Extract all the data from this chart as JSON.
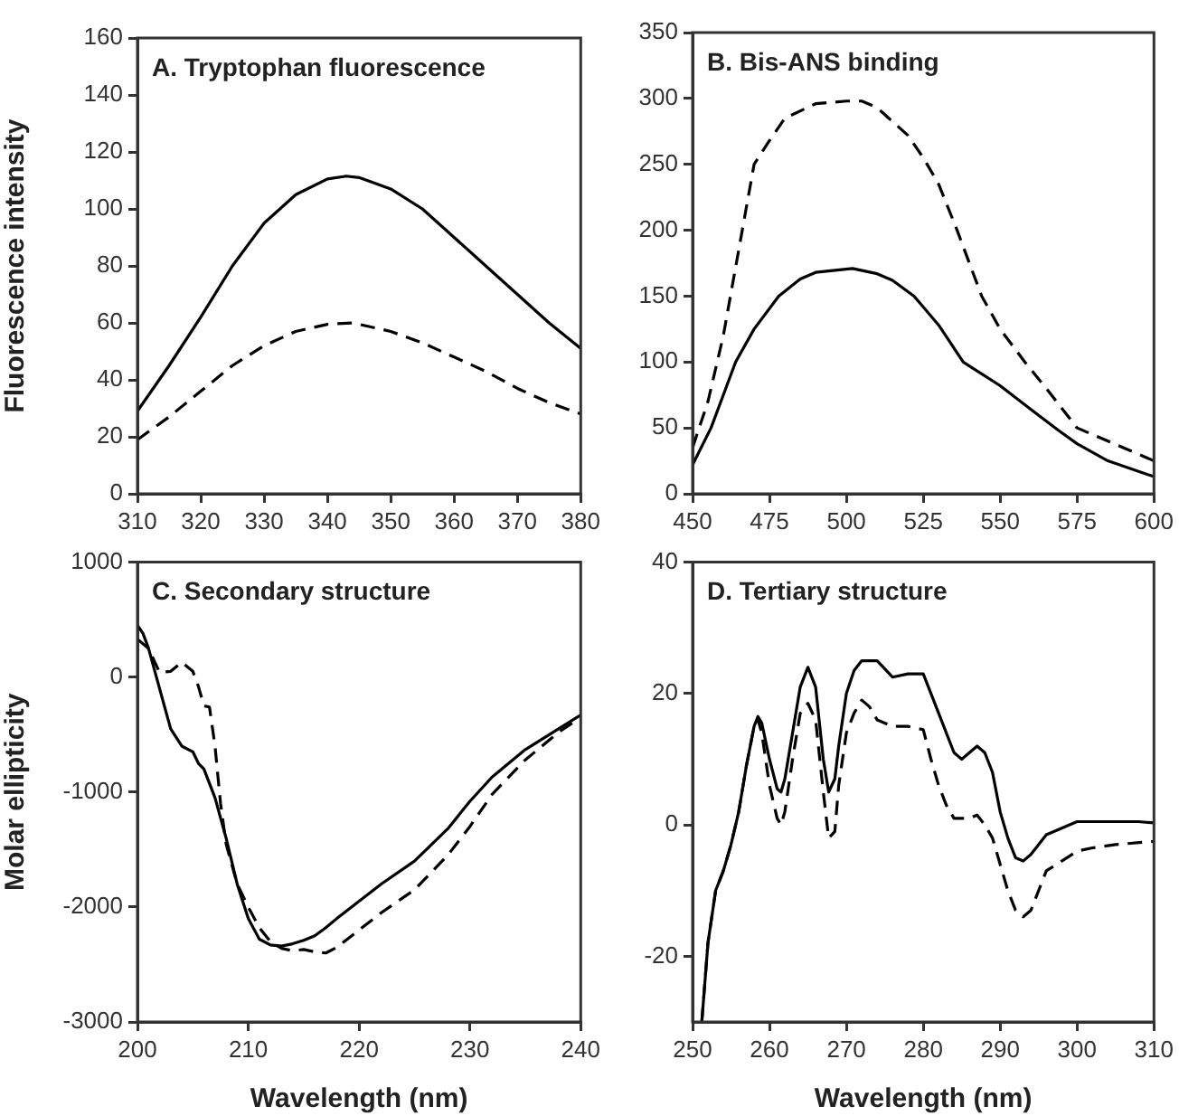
{
  "chart_data": [
    {
      "type": "line",
      "title": "A. Tryptophan fluorescence",
      "ylabel": "Fluorescence intensity",
      "xlim": [
        310,
        380
      ],
      "xticks": [
        310,
        320,
        330,
        340,
        350,
        360,
        370,
        380
      ],
      "ylim": [
        0,
        160
      ],
      "yticks": [
        0,
        20,
        40,
        60,
        80,
        100,
        120,
        140,
        160
      ],
      "series": [
        {
          "color": "#000000",
          "line_style": "solid",
          "x": [
            310,
            315,
            320,
            325,
            330,
            335,
            340,
            343,
            345,
            350,
            355,
            360,
            365,
            370,
            375,
            380
          ],
          "values": [
            29,
            45,
            62,
            80,
            95,
            105,
            110.5,
            111.5,
            111,
            107,
            100,
            90,
            80,
            70,
            60,
            51
          ]
        },
        {
          "color": "#000000",
          "line_style": "dashed",
          "x": [
            310,
            315,
            320,
            325,
            330,
            335,
            340,
            344,
            350,
            355,
            360,
            365,
            370,
            375,
            380
          ],
          "values": [
            19,
            27,
            36,
            45,
            52,
            57,
            59.5,
            60,
            57,
            53,
            48,
            43,
            37,
            32,
            28
          ]
        }
      ]
    },
    {
      "type": "line",
      "title": "B. Bis-ANS binding",
      "xlim": [
        450,
        600
      ],
      "xticks": [
        450,
        475,
        500,
        525,
        550,
        575,
        600
      ],
      "ylim": [
        0,
        350
      ],
      "yticks": [
        0,
        50,
        100,
        150,
        200,
        250,
        300,
        350
      ],
      "series": [
        {
          "color": "#000000",
          "line_style": "solid",
          "x": [
            450,
            456,
            460,
            464,
            470,
            478,
            485,
            490,
            502,
            510,
            515,
            522,
            530,
            538,
            550,
            560,
            569,
            575,
            585,
            600
          ],
          "values": [
            22,
            50,
            75,
            100,
            125,
            150,
            163,
            168,
            171,
            167,
            162,
            150,
            128,
            100,
            82,
            64,
            48,
            38,
            25,
            13
          ]
        },
        {
          "color": "#000000",
          "line_style": "dashed",
          "x": [
            450,
            455,
            460,
            465,
            470,
            475,
            480,
            490,
            500,
            505,
            510,
            520,
            525,
            530,
            536,
            544,
            550,
            558,
            565,
            575,
            590,
            600
          ],
          "values": [
            35,
            70,
            120,
            185,
            250,
            268,
            285,
            296,
            298,
            298,
            293,
            272,
            255,
            235,
            200,
            150,
            125,
            100,
            80,
            50,
            35,
            25
          ]
        }
      ]
    },
    {
      "type": "line",
      "title": "C. Secondary structure",
      "xlabel": "Wavelength (nm)",
      "ylabel": "Molar ellipticity",
      "xlim": [
        200,
        240
      ],
      "xticks": [
        200,
        210,
        220,
        230,
        240
      ],
      "ylim": [
        -3000,
        1000
      ],
      "yticks": [
        -3000,
        -2000,
        -1000,
        0,
        1000
      ],
      "series": [
        {
          "color": "#000000",
          "line_style": "solid",
          "x": [
            200,
            200.5,
            201,
            202,
            203,
            204,
            205,
            205.5,
            206,
            207,
            208,
            209,
            210,
            211,
            212,
            213,
            214,
            215,
            216,
            217,
            218,
            220,
            222,
            225,
            228,
            230,
            232,
            235,
            238,
            240
          ],
          "values": [
            450,
            380,
            250,
            -100,
            -450,
            -600,
            -650,
            -750,
            -800,
            -1050,
            -1400,
            -1800,
            -2100,
            -2280,
            -2330,
            -2340,
            -2320,
            -2290,
            -2250,
            -2180,
            -2100,
            -1950,
            -1800,
            -1600,
            -1320,
            -1080,
            -870,
            -630,
            -450,
            -330
          ]
        },
        {
          "color": "#000000",
          "line_style": "dashed",
          "x": [
            200,
            201,
            202,
            203,
            204,
            205,
            205.5,
            206,
            206.5,
            207,
            207.5,
            208,
            209,
            210,
            211,
            212,
            213,
            214,
            215,
            216,
            217,
            218,
            220,
            222,
            225,
            228,
            230,
            232,
            235,
            238,
            240
          ],
          "values": [
            330,
            250,
            40,
            50,
            130,
            50,
            -80,
            -250,
            -260,
            -600,
            -1100,
            -1450,
            -1800,
            -2000,
            -2180,
            -2300,
            -2360,
            -2380,
            -2370,
            -2390,
            -2400,
            -2350,
            -2200,
            -2050,
            -1850,
            -1550,
            -1300,
            -1020,
            -720,
            -480,
            -350
          ]
        }
      ]
    },
    {
      "type": "line",
      "title": "D. Tertiary structure",
      "xlabel": "Wavelength (nm)",
      "xlim": [
        250,
        310
      ],
      "xticks": [
        250,
        260,
        270,
        280,
        290,
        300,
        310
      ],
      "ylim": [
        -30,
        40
      ],
      "yticks": [
        -20,
        0,
        20,
        40
      ],
      "series": [
        {
          "color": "#000000",
          "line_style": "solid",
          "x": [
            251.2,
            252,
            253,
            254,
            255,
            256,
            257,
            258,
            258.5,
            259,
            260,
            261,
            261.5,
            262,
            263,
            264,
            265,
            266,
            267,
            267.7,
            268.5,
            269,
            270,
            271,
            272,
            274,
            276,
            278,
            280,
            282,
            284,
            285,
            286,
            287,
            288,
            289,
            290,
            291,
            292,
            293,
            294,
            296,
            298,
            300,
            302,
            305,
            308,
            310
          ],
          "values": [
            -30,
            -18,
            -10,
            -7,
            -3,
            2,
            9,
            15,
            16.5,
            15.5,
            10,
            5.5,
            5,
            7,
            14,
            21,
            24,
            21,
            10,
            5,
            7,
            12,
            20,
            23.5,
            25,
            25,
            22.5,
            23,
            23,
            17,
            11,
            10,
            11,
            12,
            11,
            8,
            2,
            -2,
            -5,
            -5.5,
            -4.5,
            -1.5,
            -0.5,
            0.5,
            0.5,
            0.5,
            0.5,
            0.3
          ]
        },
        {
          "color": "#000000",
          "line_style": "dashed",
          "x": [
            251.2,
            252,
            253,
            254,
            255,
            256,
            257,
            258,
            258.5,
            259,
            260,
            261,
            261.5,
            262,
            263,
            264,
            265,
            266,
            267,
            267.7,
            268.5,
            269,
            270,
            271,
            272,
            273,
            274,
            276,
            278,
            280,
            281,
            282,
            283,
            284,
            286,
            287,
            288,
            289,
            290,
            291,
            292,
            293,
            294,
            295,
            296,
            298,
            300,
            302,
            305,
            310
          ],
          "values": [
            -30,
            -18,
            -10,
            -7,
            -3,
            2,
            9,
            15,
            16,
            14,
            6,
            1,
            0,
            2,
            10,
            17,
            18.5,
            16,
            5,
            -2,
            -1,
            6,
            14,
            17,
            19,
            18,
            16,
            15,
            15,
            14.5,
            10,
            6,
            3,
            1,
            1,
            1.5,
            0,
            -2,
            -6,
            -10,
            -13,
            -14,
            -13,
            -10,
            -7,
            -5.5,
            -4,
            -3.5,
            -3,
            -2.5
          ]
        }
      ]
    }
  ]
}
